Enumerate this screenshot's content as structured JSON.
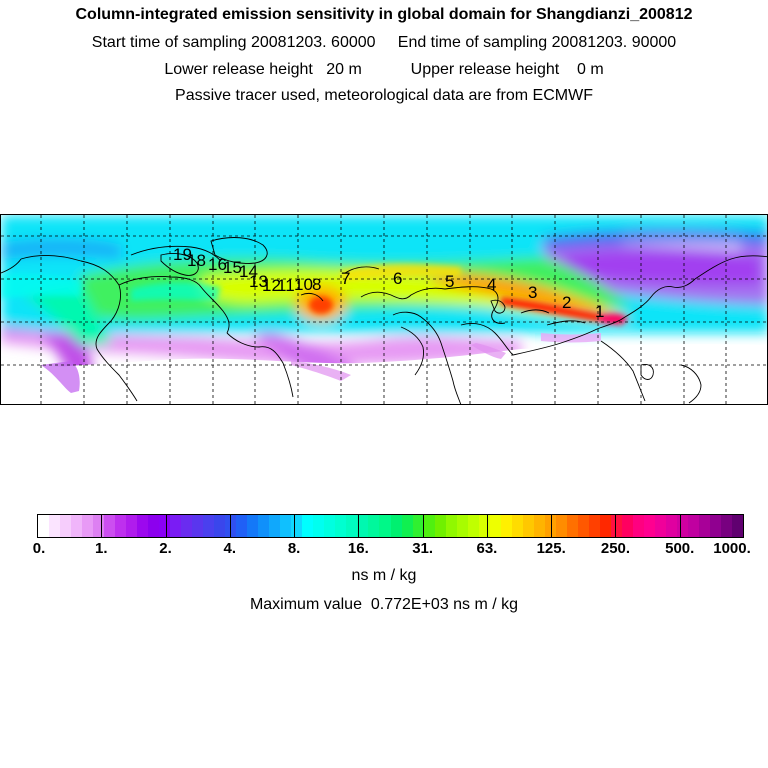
{
  "header": {
    "title": "Column-integrated emission sensitivity in global domain for Shangdianzi_200812",
    "line2": "Start time of sampling 20081203. 60000     End time of sampling 20081203. 90000",
    "line3": "Lower release height   20 m           Upper release height    0 m",
    "line4": "Passive tracer used, meteorological data are from ECMWF"
  },
  "map": {
    "trajectory_labels": [
      {
        "text": "1"
      },
      {
        "text": "2"
      },
      {
        "text": "3"
      },
      {
        "text": "4"
      },
      {
        "text": "5"
      },
      {
        "text": "6"
      },
      {
        "text": "7"
      },
      {
        "text": "8"
      },
      {
        "text": "10"
      },
      {
        "text": "11"
      },
      {
        "text": "12"
      },
      {
        "text": "13"
      },
      {
        "text": "14"
      },
      {
        "text": "15"
      },
      {
        "text": "16"
      },
      {
        "text": "18"
      },
      {
        "text": "19"
      }
    ]
  },
  "colorbar": {
    "tick_labels": [
      "0.",
      "1.",
      "2.",
      "4.",
      "8.",
      "16.",
      "31.",
      "63.",
      "125.",
      "250.",
      "500.",
      "1000."
    ],
    "colors": [
      "#ffffff",
      "#fbe4ff",
      "#f6cdfc",
      "#f0b5fa",
      "#e89af6",
      "#dd80f2",
      "#cc4ef0",
      "#be30ee",
      "#b01ced",
      "#9c08ee",
      "#8c00ee",
      "#8a00f5",
      "#7a1cf4",
      "#6a2cf0",
      "#5a36ee",
      "#4a40ee",
      "#3a46ec",
      "#3050f0",
      "#2060f6",
      "#1478f8",
      "#1090fa",
      "#10a8fc",
      "#10c0fe",
      "#10d8fe",
      "#00ffff",
      "#00fff0",
      "#00ffe0",
      "#00ffd0",
      "#00fcc0",
      "#00f8b0",
      "#00f89c",
      "#00f888",
      "#00f070",
      "#10f050",
      "#30f030",
      "#50f010",
      "#70f000",
      "#90f800",
      "#a8fc00",
      "#c0ff00",
      "#d8ff00",
      "#eeff00",
      "#fff000",
      "#ffdc00",
      "#ffc800",
      "#ffb400",
      "#ffa000",
      "#ff8c00",
      "#ff7000",
      "#ff5800",
      "#ff4000",
      "#ff2800",
      "#ff1040",
      "#ff0060",
      "#ff0080",
      "#ff0090",
      "#f0009a",
      "#e000a0",
      "#d000a0",
      "#c000a0",
      "#a80098",
      "#900090",
      "#780080",
      "#600070"
    ]
  },
  "unit_label": "ns m / kg",
  "max_value_text": "Maximum value  0.772E+03 ns m / kg"
}
